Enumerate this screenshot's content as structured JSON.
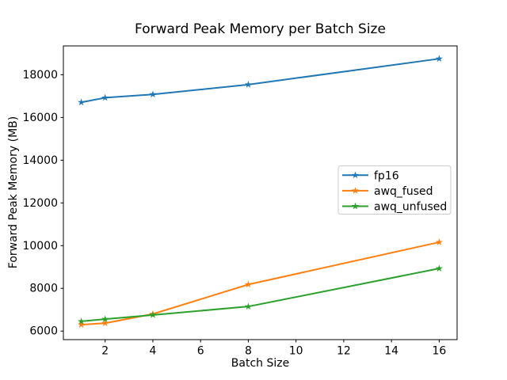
{
  "chart_data": {
    "type": "line",
    "title": "Forward Peak Memory per Batch Size",
    "xlabel": "Batch Size",
    "ylabel": "Forward Peak Memory (MB)",
    "x": [
      1,
      2,
      4,
      8,
      16
    ],
    "series": [
      {
        "name": "fp16",
        "color": "#1f77b4",
        "marker": "star",
        "values": [
          16710,
          16925,
          17080,
          17540,
          18750
        ]
      },
      {
        "name": "awq_fused",
        "color": "#ff7f0e",
        "marker": "star",
        "values": [
          6300,
          6370,
          6800,
          8180,
          10160
        ]
      },
      {
        "name": "awq_unfused",
        "color": "#2ca02c",
        "marker": "star",
        "values": [
          6455,
          6560,
          6755,
          7150,
          8930
        ]
      }
    ],
    "xticks": [
      2,
      4,
      6,
      8,
      10,
      12,
      14,
      16
    ],
    "yticks": [
      6000,
      8000,
      10000,
      12000,
      14000,
      16000,
      18000
    ],
    "xlim": [
      0.25,
      16.75
    ],
    "ylim": [
      5600,
      19350
    ],
    "grid": false,
    "legend": {
      "position": "center-right",
      "entries": [
        "fp16",
        "awq_fused",
        "awq_unfused"
      ]
    },
    "colors": {
      "background": "#ffffff",
      "axes": "#000000",
      "legend_border": "#cccccc"
    }
  }
}
